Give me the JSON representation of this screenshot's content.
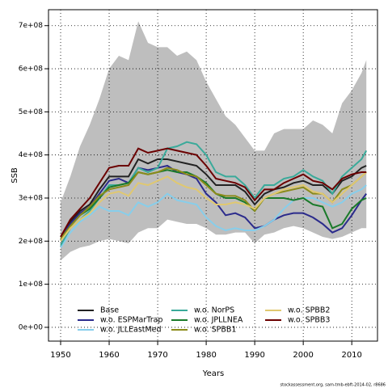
{
  "chart_data": {
    "type": "line",
    "x_label": "Years",
    "y_label": "SSB",
    "footnote": "stockassessment.org, sam-tmb-ebft-2014-02, r8686",
    "x": [
      1950,
      1952,
      1954,
      1956,
      1958,
      1960,
      1962,
      1964,
      1966,
      1968,
      1970,
      1972,
      1974,
      1976,
      1978,
      1980,
      1982,
      1984,
      1986,
      1988,
      1990,
      1992,
      1994,
      1996,
      1998,
      2000,
      2002,
      2004,
      2006,
      2008,
      2010,
      2012,
      2013
    ],
    "xlim": [
      1947.5,
      2015.3
    ],
    "xticks": [
      1950,
      1960,
      1970,
      1980,
      1990,
      2000,
      2010
    ],
    "ylim": [
      -32000000.0,
      737000000.0
    ],
    "yticks": [
      {
        "value": 0,
        "label": "0e+00"
      },
      {
        "value": 100000000.0,
        "label": "1e+08"
      },
      {
        "value": 200000000.0,
        "label": "2e+08"
      },
      {
        "value": 300000000.0,
        "label": "3e+08"
      },
      {
        "value": 400000000.0,
        "label": "4e+08"
      },
      {
        "value": 500000000.0,
        "label": "5e+08"
      },
      {
        "value": 600000000.0,
        "label": "6e+08"
      },
      {
        "value": 700000000.0,
        "label": "7e+08"
      }
    ],
    "grid": true,
    "band": {
      "color": "#bebebe",
      "upper": [
        290000000.0,
        350000000.0,
        420000000.0,
        470000000.0,
        530000000.0,
        600000000.0,
        630000000.0,
        620000000.0,
        710000000.0,
        660000000.0,
        650000000.0,
        650000000.0,
        630000000.0,
        640000000.0,
        620000000.0,
        570000000.0,
        530000000.0,
        490000000.0,
        470000000.0,
        440000000.0,
        410000000.0,
        410000000.0,
        450000000.0,
        460000000.0,
        460000000.0,
        460000000.0,
        480000000.0,
        470000000.0,
        450000000.0,
        520000000.0,
        550000000.0,
        590000000.0,
        620000000.0
      ],
      "lower": [
        155000000.0,
        175000000.0,
        185000000.0,
        190000000.0,
        200000000.0,
        205000000.0,
        200000000.0,
        195000000.0,
        220000000.0,
        230000000.0,
        230000000.0,
        250000000.0,
        245000000.0,
        240000000.0,
        240000000.0,
        230000000.0,
        215000000.0,
        215000000.0,
        220000000.0,
        220000000.0,
        195000000.0,
        215000000.0,
        220000000.0,
        230000000.0,
        235000000.0,
        230000000.0,
        220000000.0,
        210000000.0,
        205000000.0,
        210000000.0,
        220000000.0,
        230000000.0,
        230000000.0
      ]
    },
    "series": [
      {
        "name": "Base",
        "color": "#222222",
        "values": [
          210000000.0,
          245000000.0,
          270000000.0,
          285000000.0,
          320000000.0,
          350000000.0,
          350000000.0,
          350000000.0,
          390000000.0,
          380000000.0,
          390000000.0,
          390000000.0,
          385000000.0,
          380000000.0,
          375000000.0,
          355000000.0,
          330000000.0,
          330000000.0,
          330000000.0,
          315000000.0,
          285000000.0,
          310000000.0,
          320000000.0,
          325000000.0,
          335000000.0,
          340000000.0,
          330000000.0,
          330000000.0,
          310000000.0,
          340000000.0,
          350000000.0,
          370000000.0,
          375000000.0
        ]
      },
      {
        "name": "w.o. ESPMarTrap",
        "color": "#2b2b8c",
        "values": [
          210000000.0,
          240000000.0,
          265000000.0,
          280000000.0,
          310000000.0,
          340000000.0,
          345000000.0,
          335000000.0,
          370000000.0,
          365000000.0,
          370000000.0,
          375000000.0,
          360000000.0,
          355000000.0,
          345000000.0,
          310000000.0,
          290000000.0,
          260000000.0,
          265000000.0,
          255000000.0,
          230000000.0,
          235000000.0,
          250000000.0,
          260000000.0,
          265000000.0,
          265000000.0,
          255000000.0,
          240000000.0,
          220000000.0,
          230000000.0,
          260000000.0,
          295000000.0,
          310000000.0
        ]
      },
      {
        "name": "w.o. JLLEastMed",
        "color": "#87ceeb",
        "values": [
          185000000.0,
          220000000.0,
          245000000.0,
          260000000.0,
          280000000.0,
          270000000.0,
          270000000.0,
          260000000.0,
          290000000.0,
          280000000.0,
          290000000.0,
          310000000.0,
          295000000.0,
          290000000.0,
          285000000.0,
          255000000.0,
          235000000.0,
          225000000.0,
          230000000.0,
          225000000.0,
          225000000.0,
          235000000.0,
          250000000.0,
          275000000.0,
          295000000.0,
          300000000.0,
          300000000.0,
          290000000.0,
          280000000.0,
          290000000.0,
          310000000.0,
          320000000.0,
          330000000.0
        ]
      },
      {
        "name": "w.o. NorPS",
        "color": "#3aaa9a",
        "values": [
          190000000.0,
          230000000.0,
          250000000.0,
          270000000.0,
          300000000.0,
          330000000.0,
          330000000.0,
          335000000.0,
          370000000.0,
          360000000.0,
          370000000.0,
          415000000.0,
          420000000.0,
          430000000.0,
          425000000.0,
          400000000.0,
          360000000.0,
          350000000.0,
          350000000.0,
          330000000.0,
          300000000.0,
          330000000.0,
          330000000.0,
          345000000.0,
          350000000.0,
          365000000.0,
          350000000.0,
          340000000.0,
          310000000.0,
          350000000.0,
          370000000.0,
          390000000.0,
          410000000.0
        ]
      },
      {
        "name": "w.o. JPLLNEA",
        "color": "#1a7a2a",
        "values": [
          205000000.0,
          235000000.0,
          260000000.0,
          275000000.0,
          300000000.0,
          325000000.0,
          330000000.0,
          335000000.0,
          360000000.0,
          355000000.0,
          360000000.0,
          365000000.0,
          360000000.0,
          360000000.0,
          350000000.0,
          335000000.0,
          310000000.0,
          300000000.0,
          300000000.0,
          290000000.0,
          270000000.0,
          300000000.0,
          300000000.0,
          300000000.0,
          295000000.0,
          300000000.0,
          285000000.0,
          280000000.0,
          230000000.0,
          240000000.0,
          275000000.0,
          295000000.0,
          300000000.0
        ]
      },
      {
        "name": "w.o. SPBB1",
        "color": "#8b8b1a",
        "values": [
          205000000.0,
          235000000.0,
          260000000.0,
          280000000.0,
          305000000.0,
          320000000.0,
          325000000.0,
          330000000.0,
          360000000.0,
          355000000.0,
          360000000.0,
          370000000.0,
          365000000.0,
          355000000.0,
          350000000.0,
          330000000.0,
          310000000.0,
          305000000.0,
          305000000.0,
          295000000.0,
          270000000.0,
          300000000.0,
          310000000.0,
          315000000.0,
          320000000.0,
          325000000.0,
          310000000.0,
          310000000.0,
          290000000.0,
          320000000.0,
          330000000.0,
          350000000.0,
          360000000.0
        ]
      },
      {
        "name": "w.o. SPBB2",
        "color": "#e0c870",
        "values": [
          200000000.0,
          230000000.0,
          250000000.0,
          265000000.0,
          290000000.0,
          310000000.0,
          315000000.0,
          305000000.0,
          335000000.0,
          330000000.0,
          340000000.0,
          350000000.0,
          335000000.0,
          325000000.0,
          320000000.0,
          300000000.0,
          285000000.0,
          285000000.0,
          290000000.0,
          285000000.0,
          275000000.0,
          300000000.0,
          310000000.0,
          320000000.0,
          325000000.0,
          330000000.0,
          315000000.0,
          310000000.0,
          290000000.0,
          310000000.0,
          330000000.0,
          350000000.0,
          360000000.0
        ]
      },
      {
        "name": "w.o. SPBB3",
        "color": "#6b0000",
        "values": [
          210000000.0,
          250000000.0,
          275000000.0,
          300000000.0,
          335000000.0,
          370000000.0,
          375000000.0,
          375000000.0,
          415000000.0,
          405000000.0,
          410000000.0,
          415000000.0,
          410000000.0,
          405000000.0,
          400000000.0,
          375000000.0,
          345000000.0,
          340000000.0,
          335000000.0,
          325000000.0,
          295000000.0,
          320000000.0,
          320000000.0,
          335000000.0,
          345000000.0,
          355000000.0,
          340000000.0,
          335000000.0,
          320000000.0,
          345000000.0,
          355000000.0,
          360000000.0,
          360000000.0
        ]
      }
    ]
  }
}
